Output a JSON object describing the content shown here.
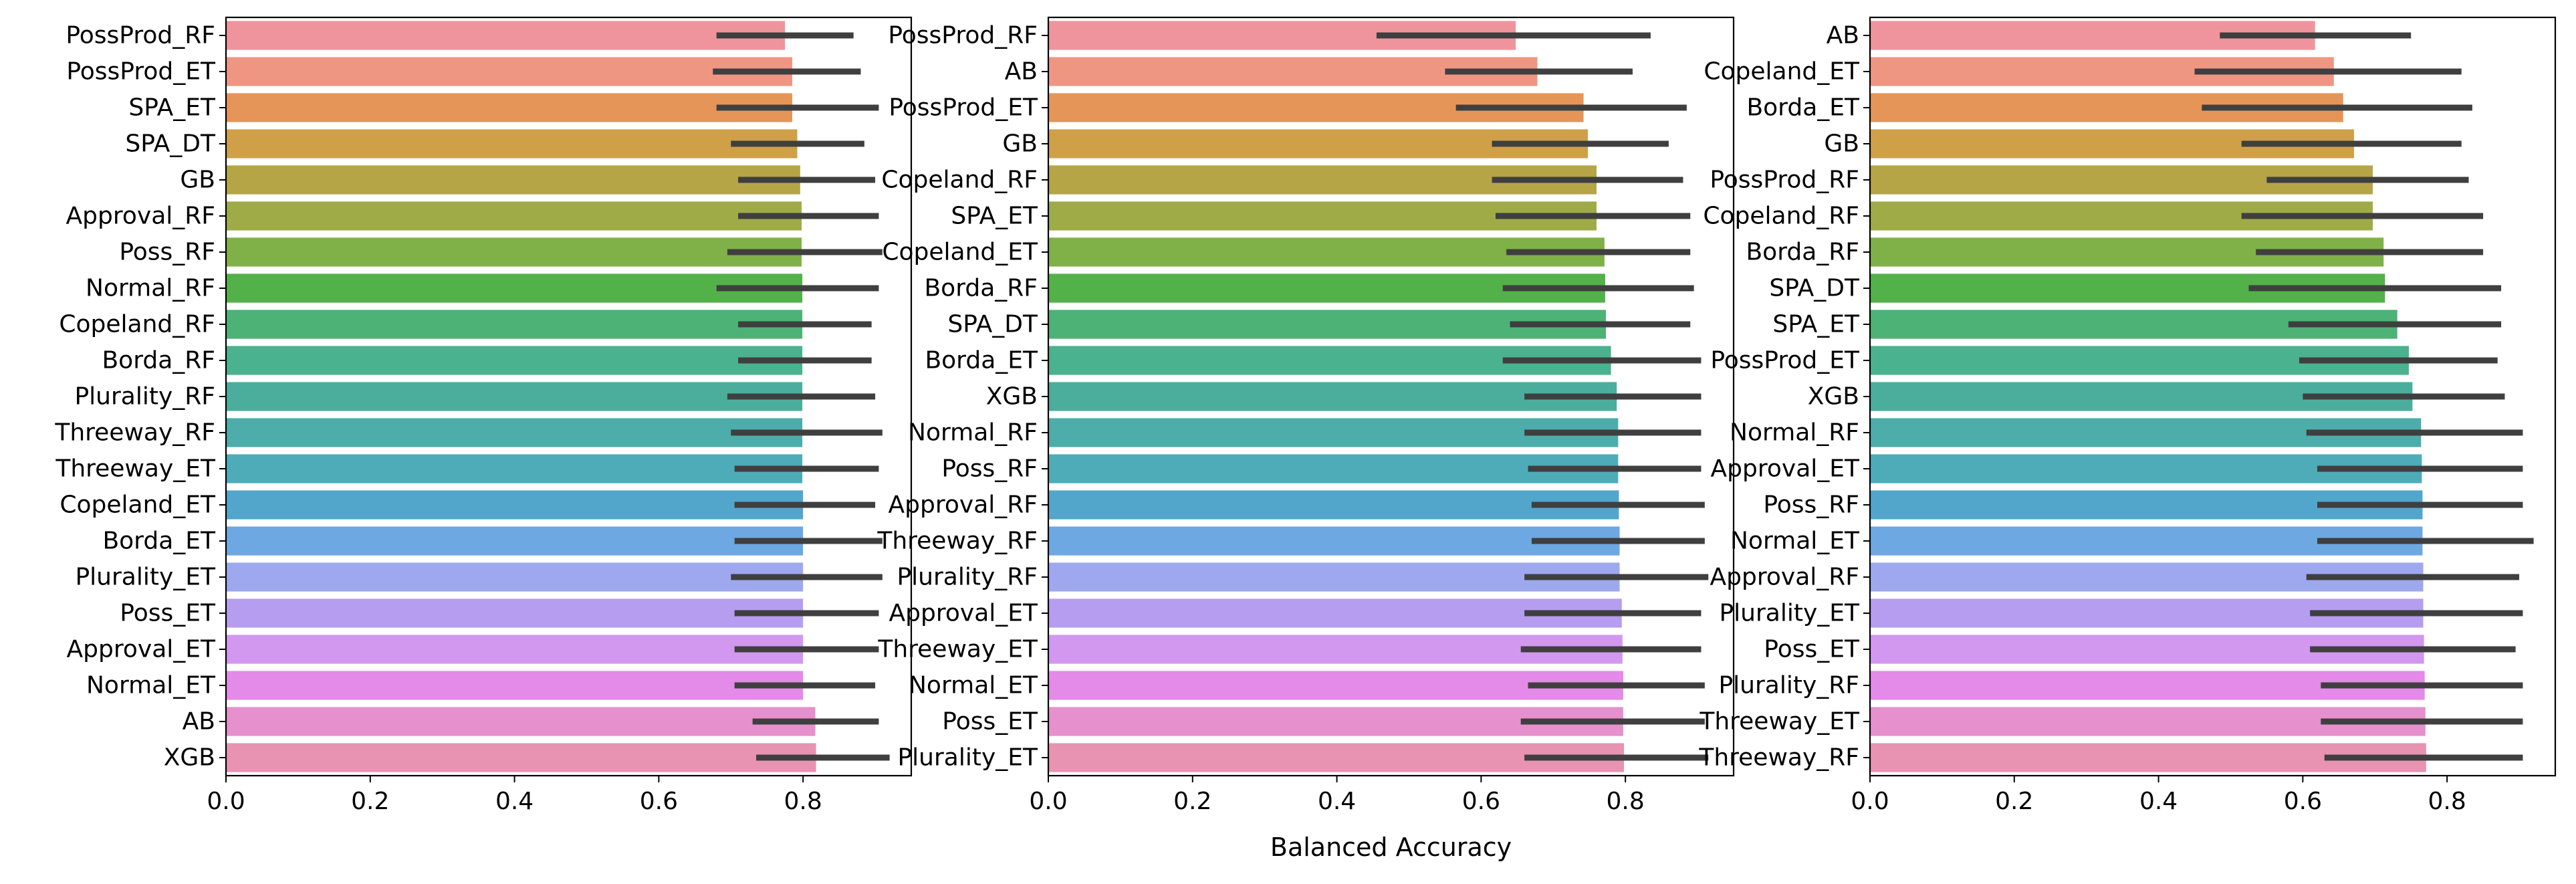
{
  "chart_data": [
    {
      "type": "bar",
      "orientation": "horizontal",
      "categories": [
        "PossProd_RF",
        "PossProd_ET",
        "SPA_ET",
        "SPA_DT",
        "GB",
        "Approval_RF",
        "Poss_RF",
        "Normal_RF",
        "Copeland_RF",
        "Borda_RF",
        "Plurality_RF",
        "Threeway_RF",
        "Threeway_ET",
        "Copeland_ET",
        "Borda_ET",
        "Plurality_ET",
        "Poss_ET",
        "Approval_ET",
        "Normal_ET",
        "AB",
        "XGB"
      ],
      "values": [
        0.775,
        0.785,
        0.785,
        0.792,
        0.796,
        0.798,
        0.798,
        0.799,
        0.799,
        0.799,
        0.799,
        0.799,
        0.799,
        0.8,
        0.8,
        0.8,
        0.8,
        0.8,
        0.8,
        0.817,
        0.818
      ],
      "error_low": [
        0.68,
        0.675,
        0.68,
        0.7,
        0.71,
        0.71,
        0.695,
        0.68,
        0.71,
        0.71,
        0.695,
        0.7,
        0.705,
        0.705,
        0.705,
        0.7,
        0.705,
        0.705,
        0.705,
        0.73,
        0.735
      ],
      "error_high": [
        0.87,
        0.88,
        0.905,
        0.885,
        0.9,
        0.905,
        0.91,
        0.905,
        0.895,
        0.895,
        0.9,
        0.91,
        0.905,
        0.9,
        0.91,
        0.91,
        0.905,
        0.905,
        0.9,
        0.905,
        0.92
      ],
      "colors": [
        "#ef949d",
        "#ef9683",
        "#e59558",
        "#cfa047",
        "#b5a546",
        "#9fab47",
        "#7fb148",
        "#53b149",
        "#4db275",
        "#4ab28f",
        "#4bae9c",
        "#4cadaa",
        "#4eacb9",
        "#52a6cc",
        "#6da8e2",
        "#9ea8ef",
        "#b69df0",
        "#d297ef",
        "#e48ae8",
        "#e690cd",
        "#e893b1"
      ],
      "xlim": [
        0,
        0.95
      ],
      "xticks": [
        "0.0",
        "0.2",
        "0.4",
        "0.6",
        "0.8"
      ],
      "xlabel": ""
    },
    {
      "type": "bar",
      "orientation": "horizontal",
      "categories": [
        "PossProd_RF",
        "AB",
        "PossProd_ET",
        "GB",
        "Copeland_RF",
        "SPA_ET",
        "Copeland_ET",
        "Borda_RF",
        "SPA_DT",
        "Borda_ET",
        "XGB",
        "Normal_RF",
        "Poss_RF",
        "Approval_RF",
        "Threeway_RF",
        "Plurality_RF",
        "Approval_ET",
        "Threeway_ET",
        "Normal_ET",
        "Poss_ET",
        "Plurality_ET"
      ],
      "values": [
        0.648,
        0.678,
        0.742,
        0.748,
        0.76,
        0.76,
        0.771,
        0.772,
        0.773,
        0.78,
        0.788,
        0.79,
        0.79,
        0.791,
        0.792,
        0.792,
        0.795,
        0.796,
        0.797,
        0.797,
        0.798
      ],
      "error_low": [
        0.455,
        0.55,
        0.565,
        0.615,
        0.615,
        0.62,
        0.635,
        0.63,
        0.64,
        0.63,
        0.66,
        0.66,
        0.665,
        0.67,
        0.67,
        0.66,
        0.66,
        0.655,
        0.665,
        0.655,
        0.66
      ],
      "error_high": [
        0.835,
        0.81,
        0.885,
        0.86,
        0.88,
        0.89,
        0.89,
        0.895,
        0.89,
        0.905,
        0.905,
        0.905,
        0.905,
        0.91,
        0.91,
        0.915,
        0.905,
        0.905,
        0.91,
        0.91,
        0.915
      ],
      "colors": [
        "#ef949d",
        "#ef9683",
        "#e59558",
        "#cfa047",
        "#b5a546",
        "#9fab47",
        "#7fb148",
        "#53b149",
        "#4db275",
        "#4ab28f",
        "#4bae9c",
        "#4cadaa",
        "#4eacb9",
        "#52a6cc",
        "#6da8e2",
        "#9ea8ef",
        "#b69df0",
        "#d297ef",
        "#e48ae8",
        "#e690cd",
        "#e893b1"
      ],
      "xlim": [
        0,
        0.95
      ],
      "xticks": [
        "0.0",
        "0.2",
        "0.4",
        "0.6",
        "0.8"
      ],
      "xlabel": "Balanced Accuracy"
    },
    {
      "type": "bar",
      "orientation": "horizontal",
      "categories": [
        "AB",
        "Copeland_ET",
        "Borda_ET",
        "GB",
        "PossProd_RF",
        "Copeland_RF",
        "Borda_RF",
        "SPA_DT",
        "SPA_ET",
        "PossProd_ET",
        "XGB",
        "Normal_RF",
        "Approval_ET",
        "Poss_RF",
        "Normal_ET",
        "Approval_RF",
        "Plurality_ET",
        "Poss_ET",
        "Plurality_RF",
        "Threeway_ET",
        "Threeway_RF"
      ],
      "values": [
        0.617,
        0.643,
        0.656,
        0.671,
        0.697,
        0.697,
        0.712,
        0.714,
        0.731,
        0.747,
        0.752,
        0.764,
        0.765,
        0.766,
        0.766,
        0.767,
        0.767,
        0.768,
        0.769,
        0.77,
        0.771
      ],
      "error_low": [
        0.485,
        0.45,
        0.46,
        0.515,
        0.55,
        0.515,
        0.535,
        0.525,
        0.58,
        0.595,
        0.6,
        0.605,
        0.62,
        0.62,
        0.62,
        0.605,
        0.61,
        0.61,
        0.625,
        0.625,
        0.63
      ],
      "error_high": [
        0.75,
        0.82,
        0.835,
        0.82,
        0.83,
        0.85,
        0.85,
        0.875,
        0.875,
        0.87,
        0.88,
        0.905,
        0.905,
        0.905,
        0.92,
        0.9,
        0.905,
        0.895,
        0.905,
        0.905,
        0.905
      ],
      "colors": [
        "#ef949d",
        "#ef9683",
        "#e59558",
        "#cfa047",
        "#b5a546",
        "#9fab47",
        "#7fb148",
        "#53b149",
        "#4db275",
        "#4ab28f",
        "#4bae9c",
        "#4cadaa",
        "#4eacb9",
        "#52a6cc",
        "#6da8e2",
        "#9ea8ef",
        "#b69df0",
        "#d297ef",
        "#e48ae8",
        "#e690cd",
        "#e893b1"
      ],
      "xlim": [
        0,
        0.95
      ],
      "xticks": [
        "0.0",
        "0.2",
        "0.4",
        "0.6",
        "0.8"
      ],
      "xlabel": ""
    }
  ],
  "style": {
    "error_bar_color": "#3f3f3f",
    "axis_color": "#000000",
    "text_color": "#000000"
  }
}
